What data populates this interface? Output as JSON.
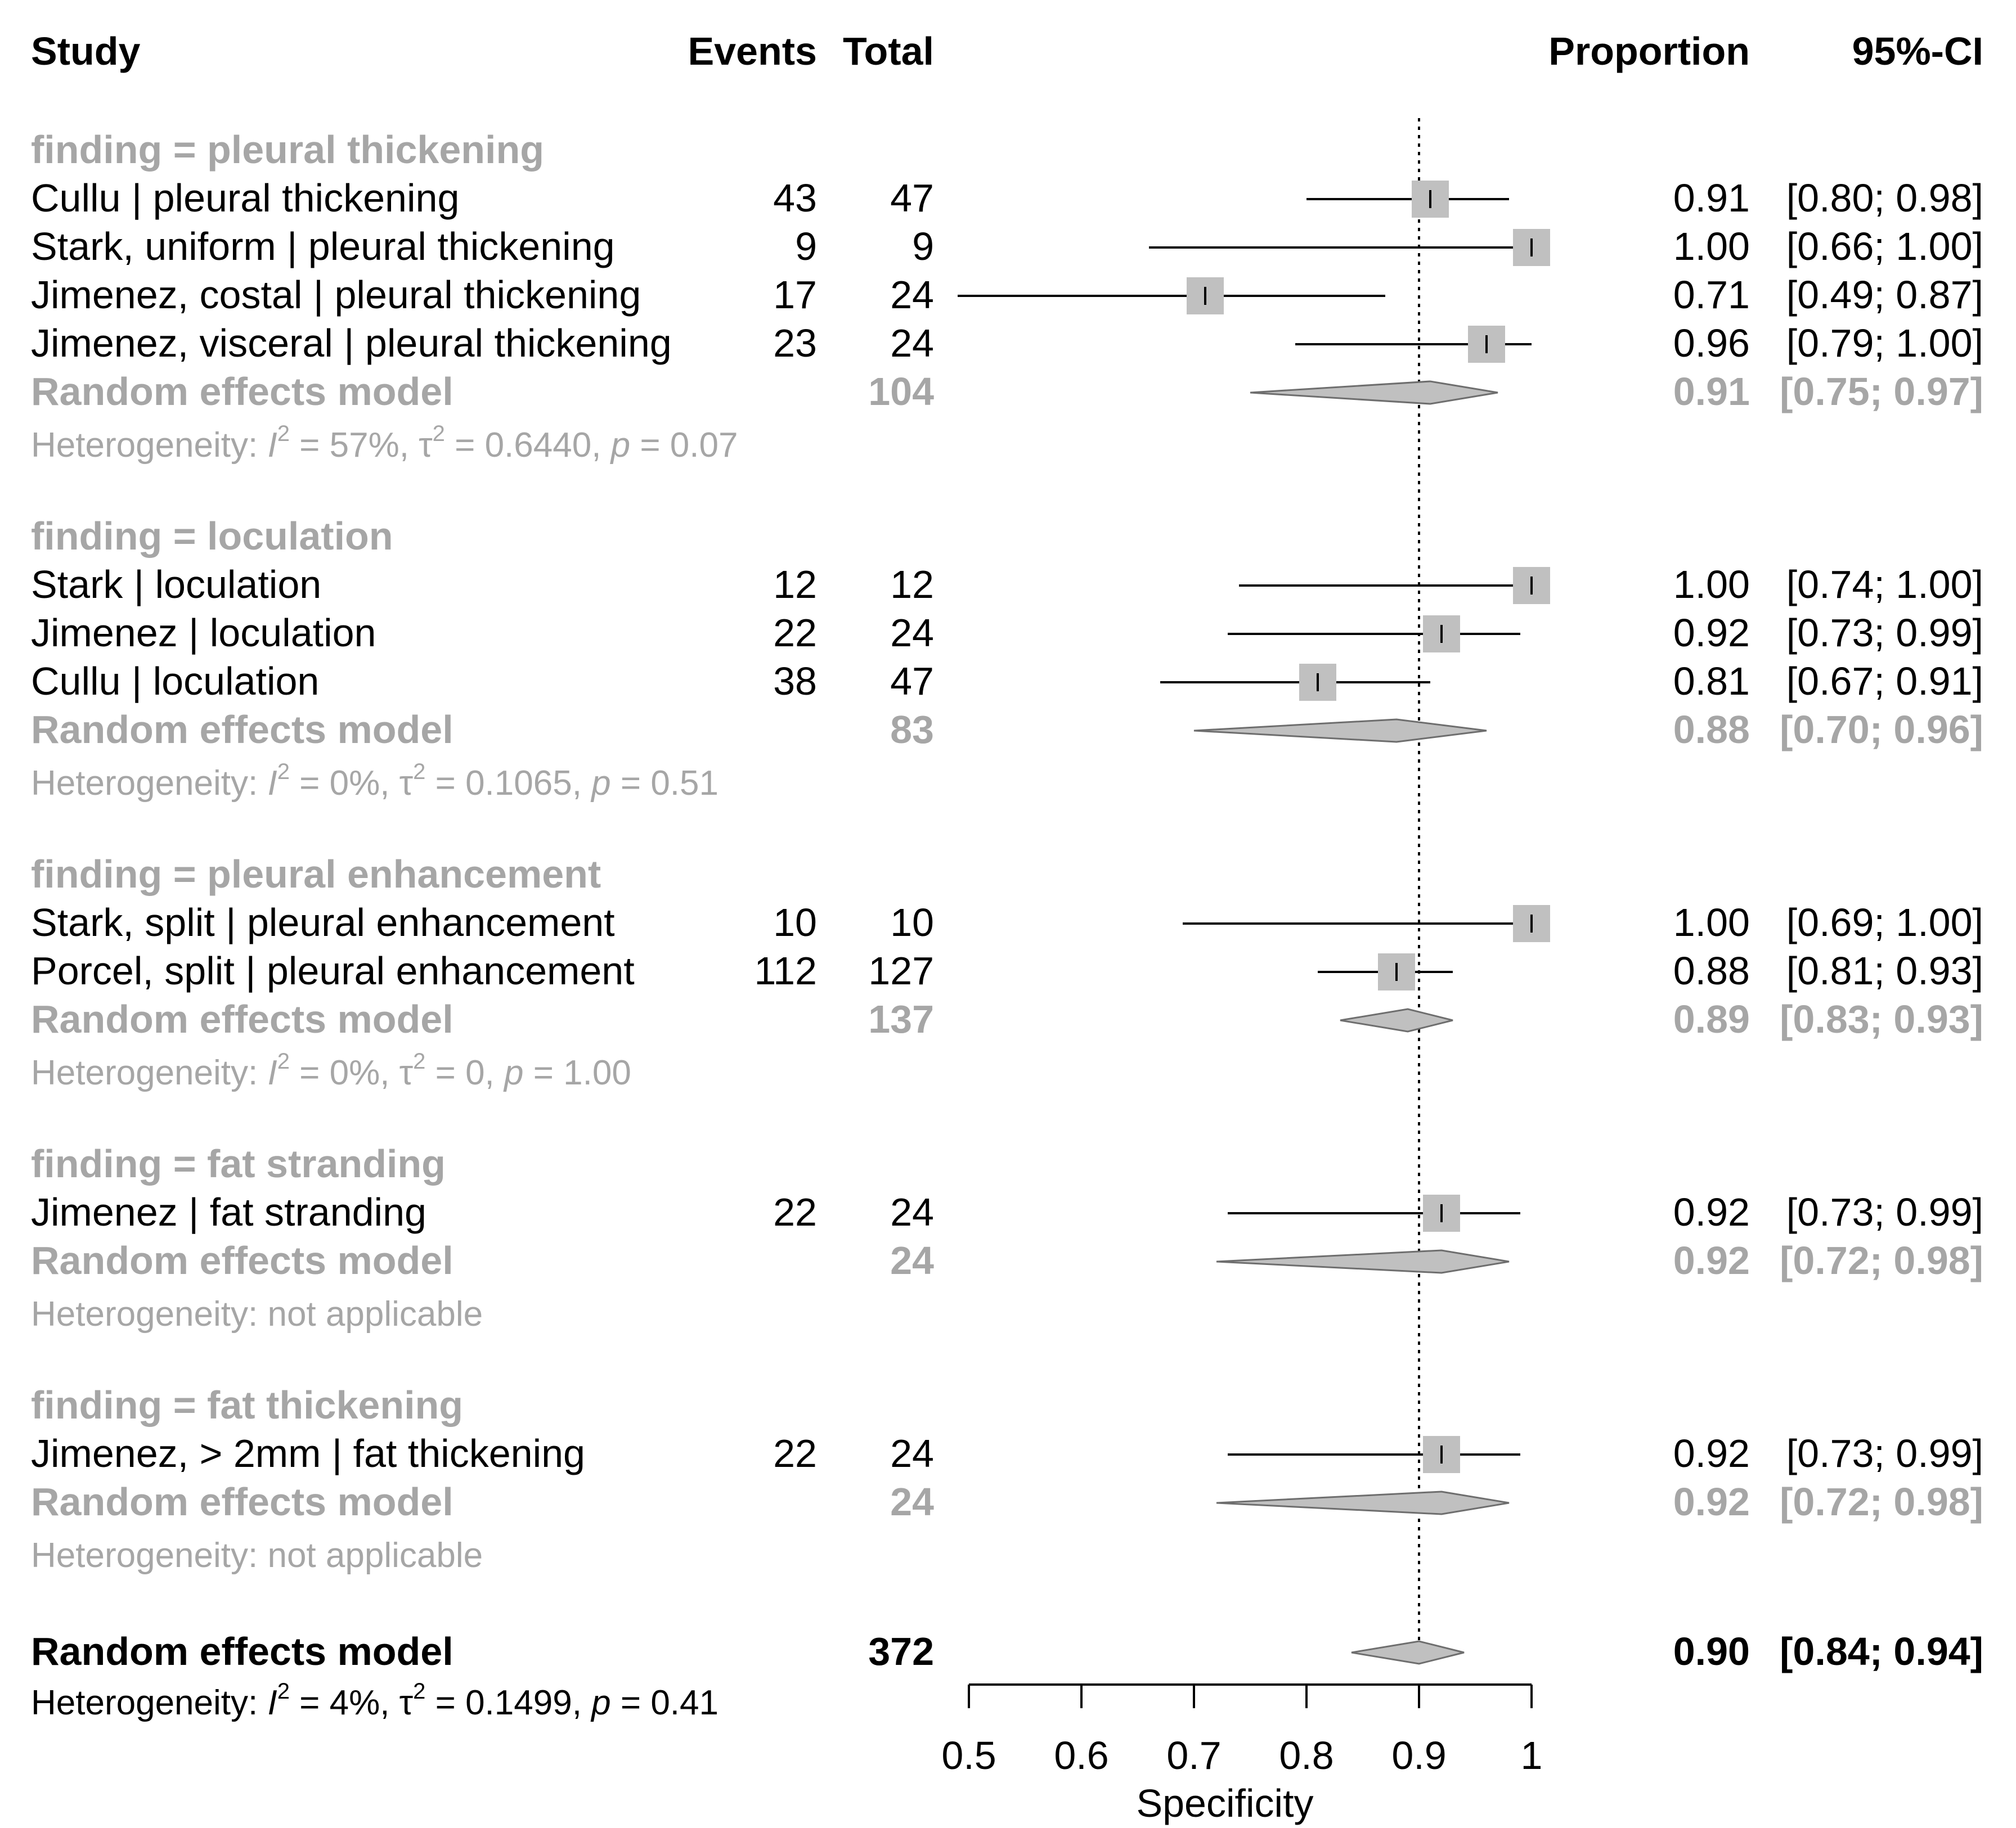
{
  "header": {
    "study": "Study",
    "events": "Events",
    "total": "Total",
    "proportion": "Proportion",
    "ci": "95%-CI"
  },
  "colors": {
    "text": "#000000",
    "subgroup_gray": "#a6a6a6",
    "square_fill": "#c0c0c0",
    "diamond_fill": "#c0c0c0",
    "diamond_stroke": "#6e6e6e"
  },
  "chart_data": {
    "type": "forest",
    "xlabel": "Specificity",
    "xlim": [
      0.5,
      1.0
    ],
    "xticks": [
      0.5,
      0.6,
      0.7,
      0.8,
      0.9,
      1.0
    ],
    "xtick_labels": [
      "0.5",
      "0.6",
      "0.7",
      "0.8",
      "0.9",
      "1"
    ],
    "reference_line": 0.9,
    "groups": [
      {
        "label": "finding = pleural thickening",
        "studies": [
          {
            "study": "Cullu | pleural thickening",
            "events": "43",
            "total": "47",
            "prop": 0.91,
            "lo": 0.8,
            "hi": 0.98,
            "prop_text": "0.91",
            "ci_text": "[0.80; 0.98]"
          },
          {
            "study": "Stark, uniform | pleural thickening",
            "events": "9",
            "total": "9",
            "prop": 1.0,
            "lo": 0.66,
            "hi": 1.0,
            "prop_text": "1.00",
            "ci_text": "[0.66; 1.00]"
          },
          {
            "study": "Jimenez, costal | pleural thickening",
            "events": "17",
            "total": "24",
            "prop": 0.71,
            "lo": 0.49,
            "hi": 0.87,
            "prop_text": "0.71",
            "ci_text": "[0.49; 0.87]"
          },
          {
            "study": "Jimenez, visceral | pleural thickening",
            "events": "23",
            "total": "24",
            "prop": 0.96,
            "lo": 0.79,
            "hi": 1.0,
            "prop_text": "0.96",
            "ci_text": "[0.79; 1.00]"
          }
        ],
        "model": {
          "label": "Random effects model",
          "total": "104",
          "est": 0.91,
          "lo": 0.75,
          "hi": 0.97,
          "prop_text": "0.91",
          "ci_text": "[0.75; 0.97]"
        },
        "heterogeneity": {
          "prefix": "Heterogeneity: ",
          "I2": "57%",
          "tau2": "0.6440",
          "p": "0.07",
          "text": ""
        }
      },
      {
        "label": "finding = loculation",
        "studies": [
          {
            "study": "Stark | loculation",
            "events": "12",
            "total": "12",
            "prop": 1.0,
            "lo": 0.74,
            "hi": 1.0,
            "prop_text": "1.00",
            "ci_text": "[0.74; 1.00]"
          },
          {
            "study": "Jimenez | loculation",
            "events": "22",
            "total": "24",
            "prop": 0.92,
            "lo": 0.73,
            "hi": 0.99,
            "prop_text": "0.92",
            "ci_text": "[0.73; 0.99]"
          },
          {
            "study": "Cullu | loculation",
            "events": "38",
            "total": "47",
            "prop": 0.81,
            "lo": 0.67,
            "hi": 0.91,
            "prop_text": "0.81",
            "ci_text": "[0.67; 0.91]"
          }
        ],
        "model": {
          "label": "Random effects model",
          "total": "83",
          "est": 0.88,
          "lo": 0.7,
          "hi": 0.96,
          "prop_text": "0.88",
          "ci_text": "[0.70; 0.96]"
        },
        "heterogeneity": {
          "prefix": "Heterogeneity: ",
          "I2": "0%",
          "tau2": "0.1065",
          "p": "0.51",
          "text": ""
        }
      },
      {
        "label": "finding = pleural enhancement",
        "studies": [
          {
            "study": "Stark, split | pleural enhancement",
            "events": "10",
            "total": "10",
            "prop": 1.0,
            "lo": 0.69,
            "hi": 1.0,
            "prop_text": "1.00",
            "ci_text": "[0.69; 1.00]"
          },
          {
            "study": "Porcel, split | pleural enhancement",
            "events": "112",
            "total": "127",
            "prop": 0.88,
            "lo": 0.81,
            "hi": 0.93,
            "prop_text": "0.88",
            "ci_text": "[0.81; 0.93]"
          }
        ],
        "model": {
          "label": "Random effects model",
          "total": "137",
          "est": 0.89,
          "lo": 0.83,
          "hi": 0.93,
          "prop_text": "0.89",
          "ci_text": "[0.83; 0.93]"
        },
        "heterogeneity": {
          "prefix": "Heterogeneity: ",
          "I2": "0%",
          "tau2": "0",
          "p": "1.00",
          "text": ""
        }
      },
      {
        "label": "finding = fat stranding",
        "studies": [
          {
            "study": "Jimenez | fat stranding",
            "events": "22",
            "total": "24",
            "prop": 0.92,
            "lo": 0.73,
            "hi": 0.99,
            "prop_text": "0.92",
            "ci_text": "[0.73; 0.99]"
          }
        ],
        "model": {
          "label": "Random effects model",
          "total": "24",
          "est": 0.92,
          "lo": 0.72,
          "hi": 0.98,
          "prop_text": "0.92",
          "ci_text": "[0.72; 0.98]"
        },
        "heterogeneity": {
          "text": "Heterogeneity: not applicable"
        }
      },
      {
        "label": "finding = fat thickening",
        "studies": [
          {
            "study": "Jimenez, > 2mm | fat thickening",
            "events": "22",
            "total": "24",
            "prop": 0.92,
            "lo": 0.73,
            "hi": 0.99,
            "prop_text": "0.92",
            "ci_text": "[0.73; 0.99]"
          }
        ],
        "model": {
          "label": "Random effects model",
          "total": "24",
          "est": 0.92,
          "lo": 0.72,
          "hi": 0.98,
          "prop_text": "0.92",
          "ci_text": "[0.72; 0.98]"
        },
        "heterogeneity": {
          "text": "Heterogeneity: not applicable"
        }
      }
    ],
    "overall": {
      "label": "Random effects model",
      "total": "372",
      "est": 0.9,
      "lo": 0.84,
      "hi": 0.94,
      "prop_text": "0.90",
      "ci_text": "[0.84; 0.94]",
      "heterogeneity": {
        "prefix": "Heterogeneity: ",
        "I2": "4%",
        "tau2": "0.1499",
        "p": "0.41",
        "text": ""
      }
    }
  }
}
